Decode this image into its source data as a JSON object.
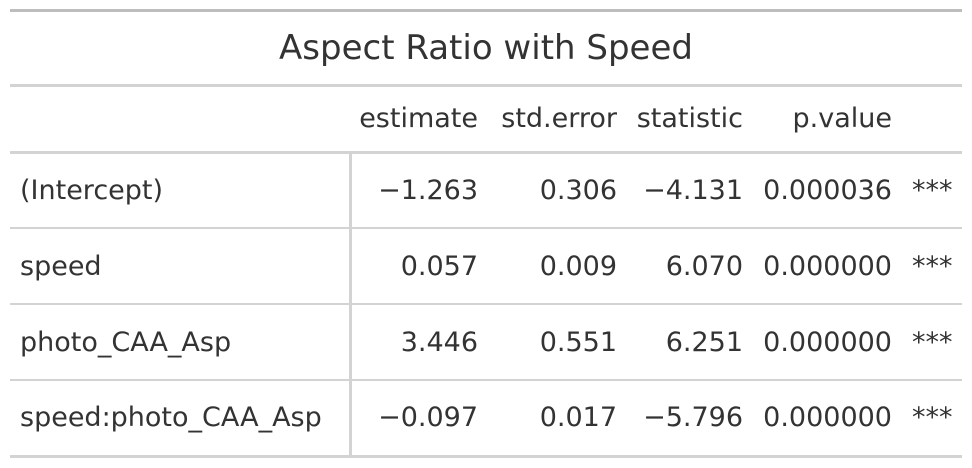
{
  "table": {
    "title": "Aspect Ratio with Speed",
    "headers": [
      "",
      "estimate",
      "std.error",
      "statistic",
      "p.value",
      ""
    ],
    "rows": [
      {
        "term": "(Intercept)",
        "estimate": "−1.263",
        "std_error": "0.306",
        "statistic": "−4.131",
        "p_value": "0.000036",
        "signif": "***"
      },
      {
        "term": "speed",
        "estimate": "0.057",
        "std_error": "0.009",
        "statistic": "6.070",
        "p_value": "0.000000",
        "signif": "***"
      },
      {
        "term": "photo_CAA_Asp",
        "estimate": "3.446",
        "std_error": "0.551",
        "statistic": "6.251",
        "p_value": "0.000000",
        "signif": "***"
      },
      {
        "term": "speed:photo_CAA_Asp",
        "estimate": "−0.097",
        "std_error": "0.017",
        "statistic": "−5.796",
        "p_value": "0.000000",
        "signif": "***"
      }
    ]
  }
}
